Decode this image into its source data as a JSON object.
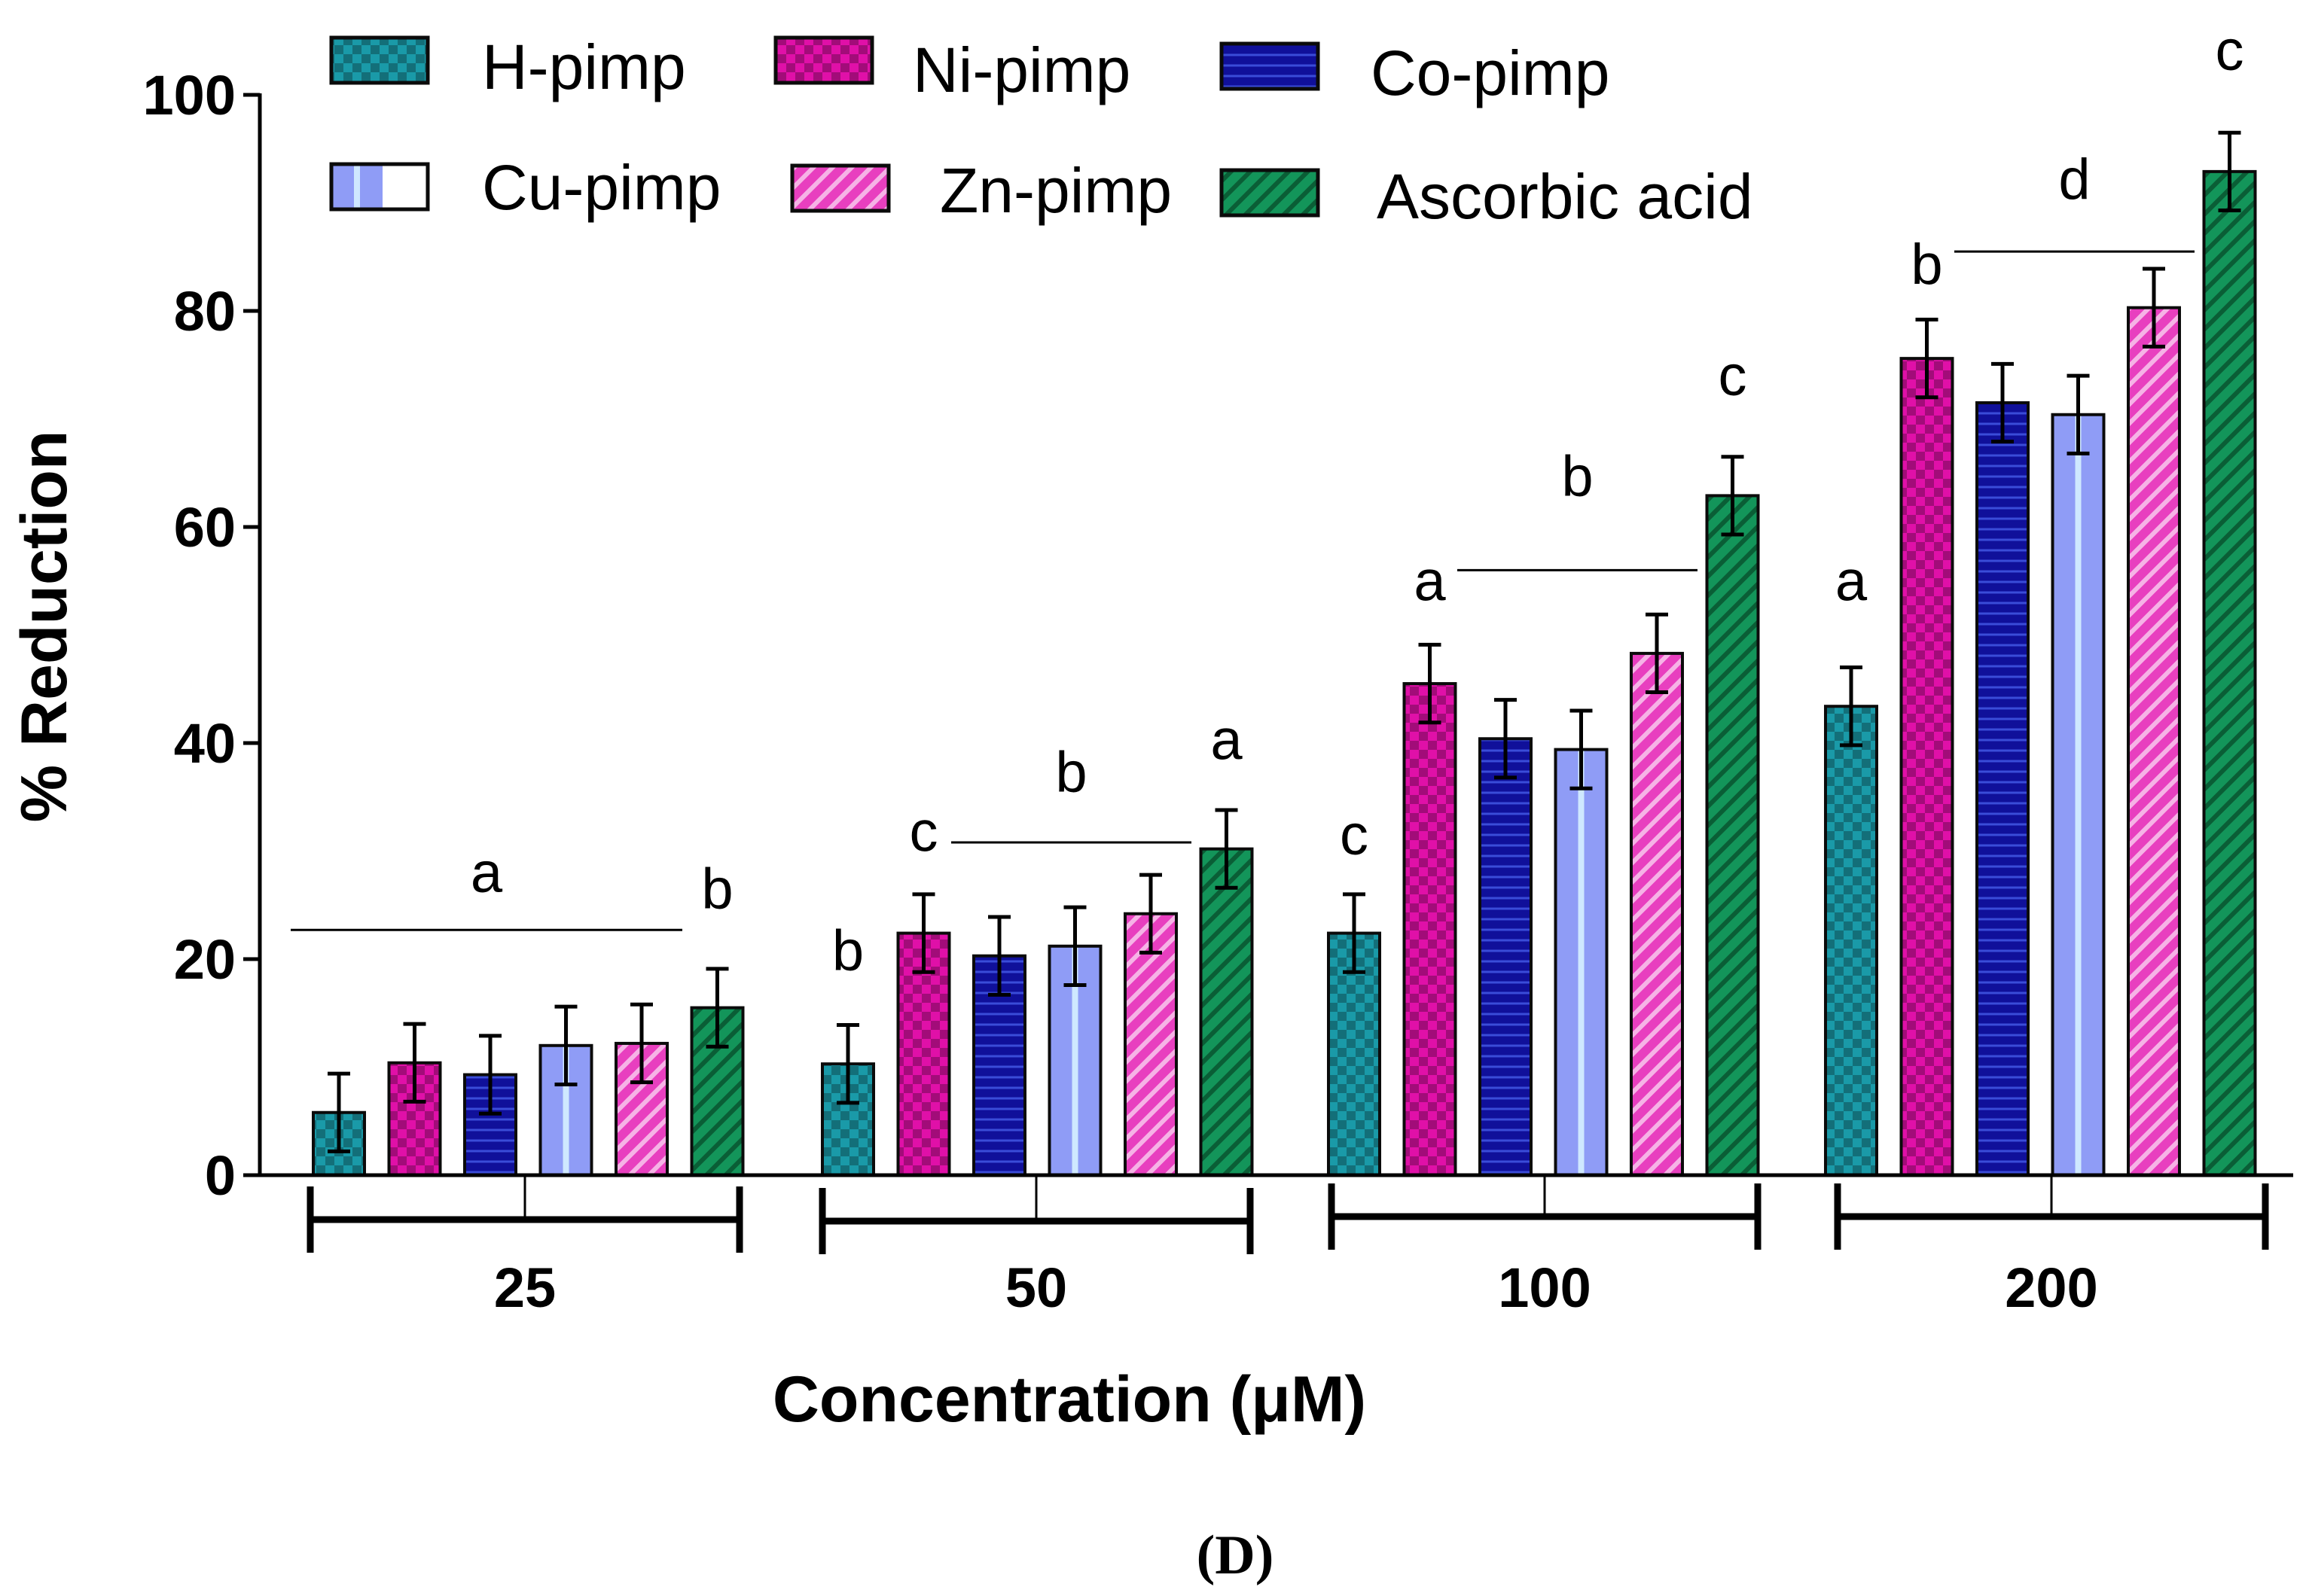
{
  "chart_data": {
    "type": "bar",
    "title": "",
    "xlabel": "Concentration (μM)",
    "ylabel": "% Reduction",
    "ylim": [
      0,
      100
    ],
    "yticks": [
      "0",
      "20",
      "40",
      "60",
      "80",
      "100"
    ],
    "categories": [
      "25",
      "50",
      "100",
      "200"
    ],
    "legend_position": "top",
    "caption": "(D)",
    "series": [
      {
        "name": "H-pimp",
        "values": [
          5.8,
          10.3,
          22.4,
          43.4
        ],
        "errors": [
          3.6,
          3.6,
          3.6,
          3.6
        ],
        "color": "#1a9aa8",
        "pattern": "checker"
      },
      {
        "name": "Ni-pimp",
        "values": [
          10.4,
          22.4,
          45.5,
          75.6
        ],
        "errors": [
          3.6,
          3.6,
          3.6,
          3.6
        ],
        "color": "#e010a8",
        "pattern": "checker"
      },
      {
        "name": "Co-pimp",
        "values": [
          9.3,
          20.3,
          40.4,
          71.5
        ],
        "errors": [
          3.6,
          3.6,
          3.6,
          3.6
        ],
        "color": "#10109a",
        "pattern": "hlines"
      },
      {
        "name": "Cu-pimp",
        "values": [
          12.0,
          21.2,
          39.4,
          70.4
        ],
        "errors": [
          3.6,
          3.6,
          3.6,
          3.6
        ],
        "color": "#8f9cf6",
        "pattern": "vstripe"
      },
      {
        "name": "Zn-pimp",
        "values": [
          12.2,
          24.2,
          48.3,
          80.3
        ],
        "errors": [
          3.6,
          3.6,
          3.6,
          3.6
        ],
        "color": "#e83fbf",
        "pattern": "diag"
      },
      {
        "name": "Ascorbic acid",
        "values": [
          15.5,
          30.2,
          62.9,
          92.9
        ],
        "errors": [
          3.6,
          3.6,
          3.6,
          3.6
        ],
        "color": "#13955a",
        "pattern": "diag"
      }
    ],
    "annotations": [
      {
        "text": "a",
        "category": 0,
        "from_series": 0,
        "to_series": 4,
        "line_y": 22.7,
        "label_y": 26.2
      },
      {
        "text": "b",
        "category": 0,
        "series": 5,
        "label_y": 24.7
      },
      {
        "text": "b",
        "category": 1,
        "series": 0,
        "label_y": 19.0
      },
      {
        "text": "c",
        "category": 1,
        "series": 1,
        "label_y": 30.0
      },
      {
        "text": "b",
        "category": 1,
        "from_series": 2,
        "to_series": 4,
        "line_y": 30.8,
        "label_y": 35.5
      },
      {
        "text": "a",
        "category": 1,
        "series": 5,
        "label_y": 38.5
      },
      {
        "text": "c",
        "category": 2,
        "series": 0,
        "label_y": 29.7
      },
      {
        "text": "a",
        "category": 2,
        "series": 1,
        "label_y": 53.2
      },
      {
        "text": "b",
        "category": 2,
        "from_series": 2,
        "to_series": 4,
        "line_y": 56.0,
        "label_y": 62.9
      },
      {
        "text": "c",
        "category": 2,
        "series": 5,
        "label_y": 72.2
      },
      {
        "text": "a",
        "category": 3,
        "series": 0,
        "label_y": 53.2
      },
      {
        "text": "b",
        "category": 3,
        "series": 1,
        "label_y": 82.5
      },
      {
        "text": "d",
        "category": 3,
        "from_series": 2,
        "to_series": 4,
        "line_y": 85.5,
        "label_y": 90.4
      },
      {
        "text": "c",
        "category": 3,
        "series": 5,
        "label_y": 102.3
      }
    ]
  }
}
